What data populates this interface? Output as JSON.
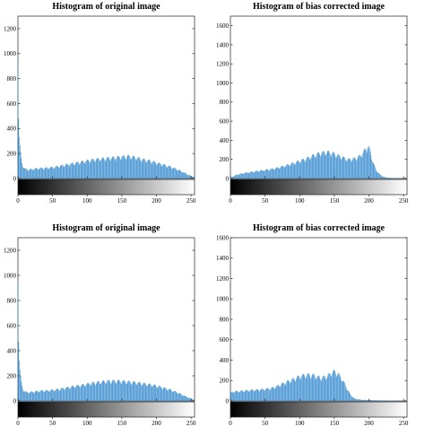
{
  "chart_data": [
    {
      "type": "bar",
      "title": "Histogram of original image",
      "xlim": [
        0,
        255
      ],
      "ylim": [
        0,
        1300
      ],
      "xticks": [
        0,
        50,
        100,
        150,
        200,
        250
      ],
      "yticks": [
        0,
        200,
        400,
        600,
        800,
        1000,
        1200
      ],
      "colorbar": "grayscale 0-255",
      "x": [
        0,
        1,
        2,
        3,
        4,
        5,
        6,
        7,
        8,
        9,
        10,
        12,
        15,
        20,
        25,
        30,
        40,
        50,
        60,
        70,
        80,
        90,
        100,
        110,
        120,
        130,
        140,
        150,
        160,
        170,
        180,
        190,
        200,
        210,
        220,
        230,
        240,
        245,
        250,
        255
      ],
      "values": [
        950,
        480,
        330,
        240,
        190,
        150,
        120,
        100,
        90,
        80,
        75,
        70,
        68,
        70,
        75,
        78,
        80,
        85,
        95,
        105,
        115,
        125,
        135,
        145,
        150,
        155,
        160,
        165,
        170,
        160,
        145,
        135,
        120,
        105,
        90,
        70,
        45,
        30,
        20,
        10
      ]
    },
    {
      "type": "bar",
      "title": "Histogram of bias corrected image",
      "xlim": [
        0,
        255
      ],
      "ylim": [
        0,
        1700
      ],
      "xticks": [
        0,
        50,
        100,
        150,
        200,
        250
      ],
      "yticks": [
        0,
        200,
        400,
        600,
        800,
        1000,
        1200,
        1400,
        1600
      ],
      "colorbar": "grayscale 0-255",
      "x": [
        0,
        5,
        10,
        20,
        30,
        40,
        50,
        60,
        70,
        80,
        90,
        100,
        110,
        120,
        130,
        140,
        150,
        160,
        170,
        180,
        185,
        190,
        195,
        198,
        200,
        203,
        206,
        210,
        215,
        220,
        225,
        230,
        240,
        250,
        255
      ],
      "values": [
        10,
        25,
        40,
        55,
        65,
        75,
        85,
        95,
        110,
        130,
        150,
        175,
        200,
        230,
        255,
        265,
        245,
        215,
        190,
        200,
        215,
        245,
        290,
        320,
        305,
        240,
        160,
        90,
        45,
        20,
        10,
        6,
        3,
        2,
        1
      ]
    },
    {
      "type": "bar",
      "title": "Histogram of original image",
      "xlim": [
        0,
        255
      ],
      "ylim": [
        0,
        1300
      ],
      "xticks": [
        0,
        50,
        100,
        150,
        200,
        250
      ],
      "yticks": [
        0,
        200,
        400,
        600,
        800,
        1000,
        1200
      ],
      "colorbar": "grayscale 0-255",
      "x": [
        0,
        1,
        2,
        3,
        4,
        5,
        6,
        7,
        8,
        9,
        10,
        12,
        15,
        20,
        25,
        30,
        40,
        50,
        60,
        70,
        80,
        90,
        100,
        110,
        120,
        130,
        140,
        150,
        160,
        170,
        180,
        190,
        200,
        210,
        220,
        230,
        240,
        245,
        250,
        255
      ],
      "values": [
        950,
        470,
        320,
        230,
        180,
        140,
        115,
        95,
        85,
        78,
        72,
        68,
        66,
        68,
        72,
        75,
        78,
        82,
        90,
        100,
        110,
        118,
        128,
        138,
        145,
        150,
        152,
        150,
        145,
        140,
        132,
        125,
        115,
        100,
        85,
        65,
        40,
        28,
        18,
        8
      ]
    },
    {
      "type": "bar",
      "title": "Histogram of bias corrected image",
      "xlim": [
        0,
        255
      ],
      "ylim": [
        0,
        1600
      ],
      "xticks": [
        0,
        50,
        100,
        150,
        200,
        250
      ],
      "yticks": [
        0,
        200,
        400,
        600,
        800,
        1000,
        1200,
        1400,
        1600
      ],
      "colorbar": "grayscale 0-255",
      "x": [
        0,
        10,
        20,
        30,
        40,
        50,
        60,
        70,
        80,
        90,
        100,
        110,
        120,
        130,
        140,
        145,
        150,
        155,
        160,
        165,
        170,
        175,
        180,
        190,
        200,
        210,
        220,
        230,
        240,
        250,
        255
      ],
      "values": [
        85,
        90,
        95,
        100,
        105,
        110,
        120,
        145,
        175,
        200,
        230,
        245,
        240,
        215,
        230,
        260,
        275,
        255,
        215,
        160,
        95,
        45,
        20,
        10,
        8,
        6,
        5,
        4,
        3,
        2,
        1
      ]
    }
  ]
}
